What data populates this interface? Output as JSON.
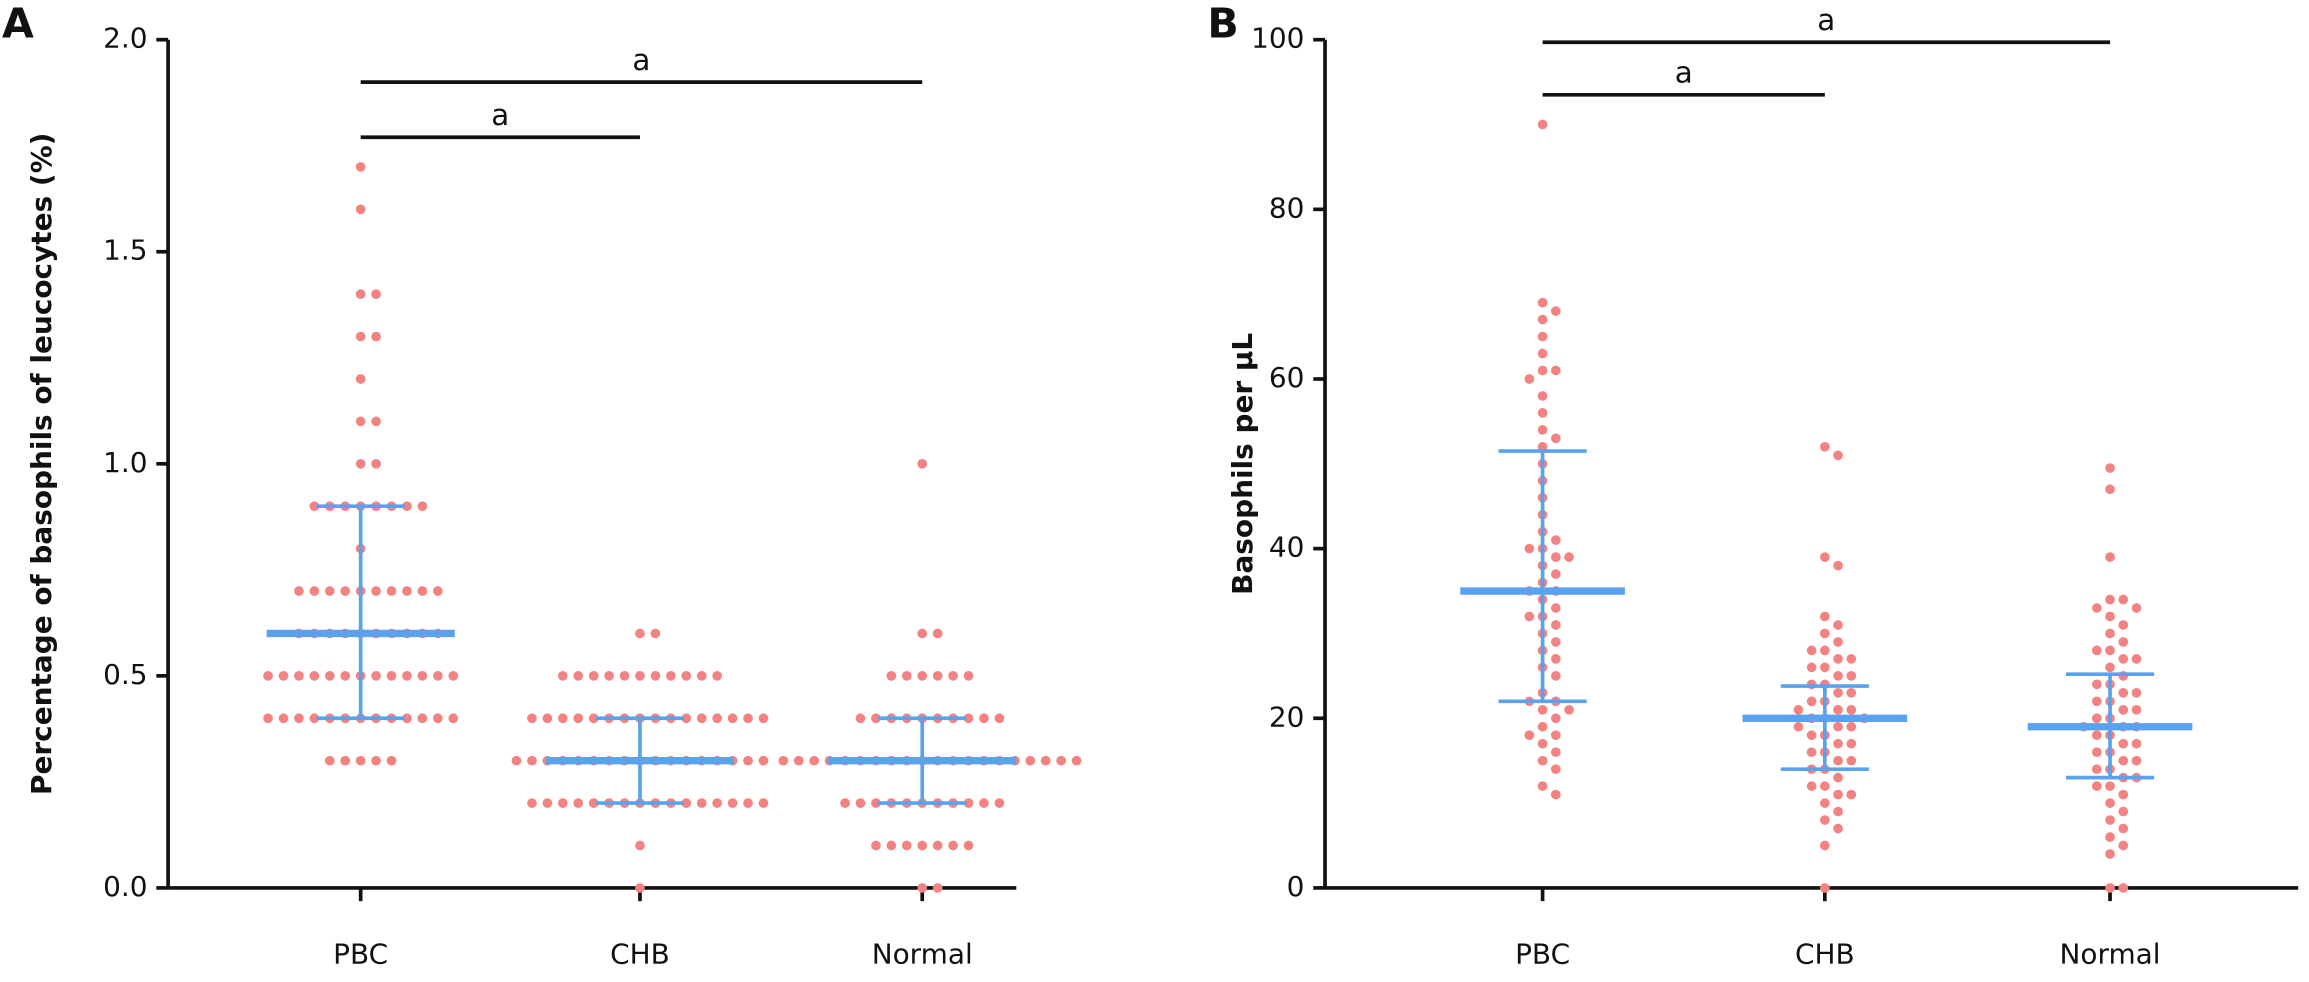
{
  "chart_data": [
    {
      "type": "dot",
      "panel": "A",
      "ylabel": "Percentage of basophils of leucocytes (%)",
      "categories": [
        "PBC",
        "CHB",
        "Normal"
      ],
      "values": [
        [
          1.7,
          1.6,
          1.4,
          1.4,
          1.3,
          1.3,
          1.2,
          1.1,
          1.1,
          1.0,
          1.0,
          0.9,
          0.9,
          0.9,
          0.9,
          0.9,
          0.9,
          0.9,
          0.9,
          0.8,
          0.7,
          0.7,
          0.7,
          0.7,
          0.7,
          0.7,
          0.7,
          0.7,
          0.7,
          0.7,
          0.6,
          0.6,
          0.6,
          0.6,
          0.6,
          0.6,
          0.6,
          0.6,
          0.6,
          0.6,
          0.5,
          0.5,
          0.5,
          0.5,
          0.5,
          0.5,
          0.5,
          0.5,
          0.5,
          0.5,
          0.5,
          0.5,
          0.5,
          0.4,
          0.4,
          0.4,
          0.4,
          0.4,
          0.4,
          0.4,
          0.4,
          0.4,
          0.4,
          0.4,
          0.4,
          0.4,
          0.3,
          0.3,
          0.3,
          0.3,
          0.3
        ],
        [
          0.6,
          0.6,
          0.5,
          0.5,
          0.5,
          0.5,
          0.5,
          0.5,
          0.5,
          0.5,
          0.5,
          0.5,
          0.5,
          0.4,
          0.4,
          0.4,
          0.4,
          0.4,
          0.4,
          0.4,
          0.4,
          0.4,
          0.4,
          0.4,
          0.4,
          0.4,
          0.4,
          0.4,
          0.4,
          0.3,
          0.3,
          0.3,
          0.3,
          0.3,
          0.3,
          0.3,
          0.3,
          0.3,
          0.3,
          0.3,
          0.3,
          0.3,
          0.3,
          0.3,
          0.3,
          0.3,
          0.2,
          0.2,
          0.2,
          0.2,
          0.2,
          0.2,
          0.2,
          0.2,
          0.2,
          0.2,
          0.2,
          0.2,
          0.2,
          0.2,
          0.2,
          0.2,
          0.1,
          0.0
        ],
        [
          1.0,
          0.6,
          0.6,
          0.5,
          0.5,
          0.5,
          0.5,
          0.5,
          0.5,
          0.4,
          0.4,
          0.4,
          0.4,
          0.4,
          0.4,
          0.4,
          0.4,
          0.4,
          0.4,
          0.3,
          0.3,
          0.3,
          0.3,
          0.3,
          0.3,
          0.3,
          0.3,
          0.3,
          0.3,
          0.3,
          0.3,
          0.3,
          0.3,
          0.3,
          0.3,
          0.3,
          0.3,
          0.3,
          0.3,
          0.2,
          0.2,
          0.2,
          0.2,
          0.2,
          0.2,
          0.2,
          0.2,
          0.2,
          0.2,
          0.2,
          0.1,
          0.1,
          0.1,
          0.1,
          0.1,
          0.1,
          0.1,
          0.0,
          0.0
        ]
      ],
      "medians": [
        0.6,
        0.3,
        0.3
      ],
      "q1": [
        0.4,
        0.2,
        0.2
      ],
      "q3": [
        0.9,
        0.4,
        0.4
      ],
      "color": "#f38383",
      "summary_color": "#5aa2ec",
      "ylim": [
        0,
        2.0
      ],
      "yticks": [
        {
          "value": 0,
          "label": "0.0"
        },
        {
          "value": 0.5,
          "label": "0.5"
        },
        {
          "value": 1.0,
          "label": "1.0"
        },
        {
          "value": 1.5,
          "label": "1.5"
        },
        {
          "value": 2.0,
          "label": "2.0"
        }
      ],
      "annotations": [
        {
          "label": "a",
          "from": 0,
          "to": 1,
          "y": 1.77
        },
        {
          "label": "a",
          "from": 0,
          "to": 2,
          "y": 1.9
        }
      ]
    },
    {
      "type": "dot",
      "panel": "B",
      "ylabel": "Basophils per μL",
      "categories": [
        "PBC",
        "CHB",
        "Normal"
      ],
      "values": [
        [
          90,
          69,
          68,
          67,
          65,
          63,
          61,
          61,
          60,
          58,
          56,
          54,
          53,
          52,
          50,
          48,
          46,
          44,
          42,
          41,
          40,
          40,
          39,
          39,
          38,
          37,
          36,
          35,
          35,
          34,
          33,
          32,
          32,
          31,
          30,
          29,
          28,
          27,
          26,
          25,
          23,
          22,
          22,
          21,
          21,
          20,
          19,
          18,
          18,
          17,
          16,
          15,
          14,
          12,
          11
        ],
        [
          52,
          51,
          39,
          38,
          32,
          31,
          30,
          29,
          28,
          28,
          27,
          27,
          26,
          26,
          25,
          25,
          24,
          24,
          23,
          23,
          22,
          22,
          21,
          21,
          21,
          20,
          20,
          20,
          19,
          19,
          19,
          18,
          18,
          17,
          17,
          16,
          16,
          15,
          15,
          14,
          14,
          13,
          12,
          12,
          11,
          11,
          10,
          9,
          8,
          7,
          5,
          0
        ],
        [
          49.5,
          47,
          39,
          34,
          34,
          33,
          33,
          32,
          31,
          30,
          29,
          28,
          28,
          27,
          27,
          26,
          25,
          24,
          24,
          23,
          23,
          22,
          22,
          21,
          21,
          20,
          20,
          19,
          19,
          19,
          18,
          18,
          17,
          17,
          16,
          16,
          15,
          15,
          14,
          14,
          13,
          13,
          12,
          12,
          11,
          10,
          9,
          8,
          7,
          6,
          5,
          4,
          0,
          0
        ]
      ],
      "medians": [
        35,
        20,
        19
      ],
      "q1": [
        22,
        14,
        13
      ],
      "q3": [
        51.5,
        23.8,
        25.2
      ],
      "color": "#f38383",
      "summary_color": "#5aa2ec",
      "ylim": [
        0,
        100
      ],
      "yticks": [
        0,
        20,
        40,
        60,
        80,
        100
      ],
      "annotations": [
        {
          "label": "a",
          "from": 0,
          "to": 1,
          "y": 93.5
        },
        {
          "label": "a",
          "from": 0,
          "to": 2,
          "y": 99.7
        }
      ]
    }
  ]
}
